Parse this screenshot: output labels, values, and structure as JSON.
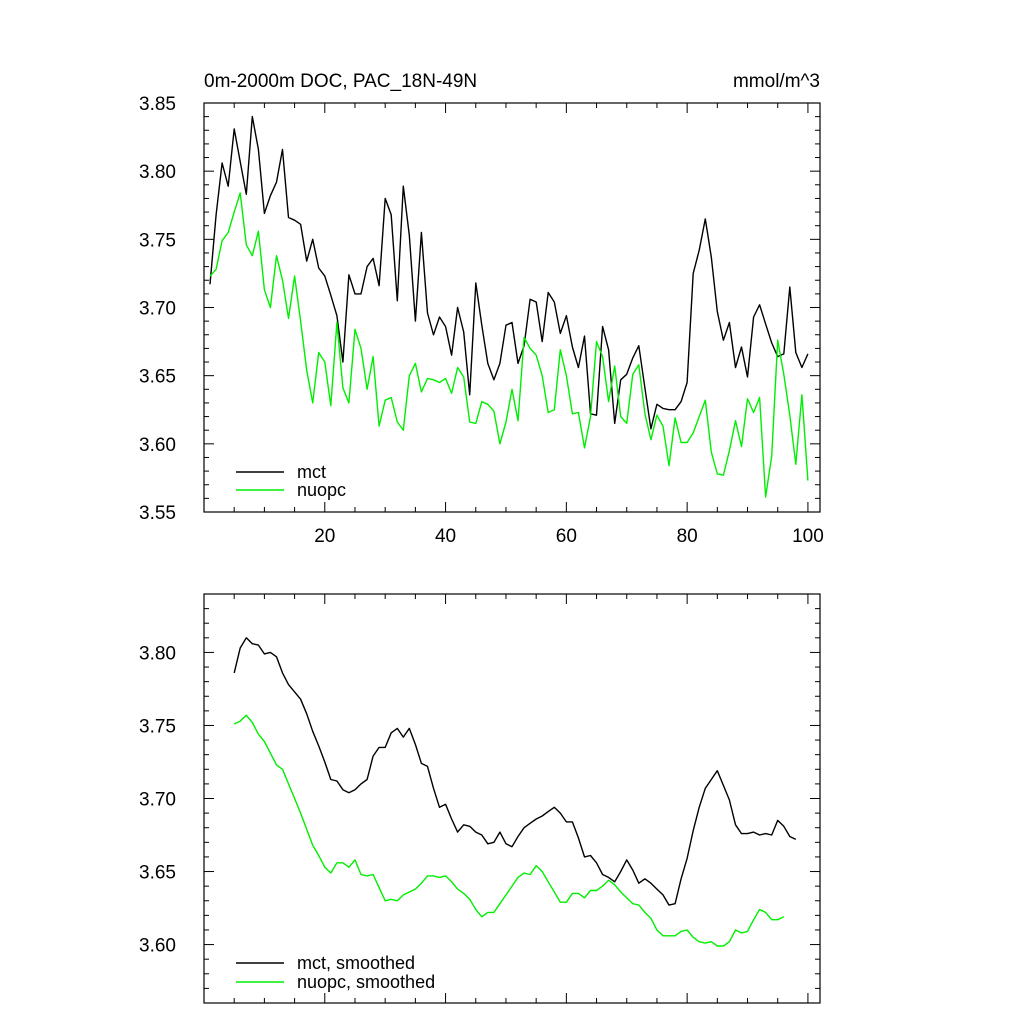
{
  "chart_data": [
    {
      "type": "line",
      "title": "0m-2000m DOC, PAC_18N-49N",
      "units": "mmol/m^3",
      "xlim": [
        0,
        102
      ],
      "ylim": [
        3.55,
        3.85
      ],
      "x_ticks": [
        20,
        40,
        60,
        80,
        100
      ],
      "x_tick_labels": [
        "20",
        "40",
        "60",
        "80",
        "100"
      ],
      "y_ticks": [
        3.55,
        3.6,
        3.65,
        3.7,
        3.75,
        3.8,
        3.85
      ],
      "y_tick_labels": [
        "3.55",
        "3.60",
        "3.65",
        "3.70",
        "3.75",
        "3.80",
        "3.85"
      ],
      "legend_position": "bottom-left",
      "series": [
        {
          "name": "mct",
          "color": "#000000",
          "x_start": 1,
          "values": [
            3.717,
            3.768,
            3.806,
            3.789,
            3.831,
            3.807,
            3.783,
            3.84,
            3.816,
            3.769,
            3.782,
            3.792,
            3.816,
            3.766,
            3.764,
            3.761,
            3.734,
            3.75,
            3.729,
            3.723,
            3.709,
            3.694,
            3.66,
            3.724,
            3.71,
            3.71,
            3.73,
            3.736,
            3.716,
            3.78,
            3.768,
            3.705,
            3.789,
            3.753,
            3.69,
            3.755,
            3.696,
            3.68,
            3.693,
            3.686,
            3.665,
            3.7,
            3.682,
            3.636,
            3.718,
            3.687,
            3.659,
            3.647,
            3.659,
            3.687,
            3.689,
            3.659,
            3.672,
            3.706,
            3.704,
            3.675,
            3.711,
            3.704,
            3.681,
            3.694,
            3.671,
            3.656,
            3.679,
            3.622,
            3.621,
            3.686,
            3.669,
            3.615,
            3.647,
            3.651,
            3.663,
            3.672,
            3.641,
            3.611,
            3.629,
            3.626,
            3.625,
            3.625,
            3.631,
            3.645,
            3.725,
            3.742,
            3.765,
            3.737,
            3.697,
            3.676,
            3.689,
            3.656,
            3.671,
            3.649,
            3.693,
            3.702,
            3.688,
            3.674,
            3.664,
            3.666,
            3.715,
            3.667,
            3.656,
            3.666
          ]
        },
        {
          "name": "nuopc",
          "color": "#00ee00",
          "x_start": 1,
          "values": [
            3.723,
            3.728,
            3.749,
            3.755,
            3.77,
            3.784,
            3.746,
            3.738,
            3.756,
            3.713,
            3.7,
            3.738,
            3.72,
            3.692,
            3.723,
            3.69,
            3.654,
            3.63,
            3.667,
            3.66,
            3.628,
            3.689,
            3.641,
            3.63,
            3.684,
            3.67,
            3.64,
            3.664,
            3.613,
            3.632,
            3.634,
            3.616,
            3.61,
            3.65,
            3.659,
            3.638,
            3.648,
            3.647,
            3.645,
            3.648,
            3.637,
            3.656,
            3.649,
            3.616,
            3.615,
            3.631,
            3.629,
            3.624,
            3.6,
            3.616,
            3.64,
            3.617,
            3.678,
            3.67,
            3.665,
            3.65,
            3.623,
            3.625,
            3.669,
            3.65,
            3.622,
            3.623,
            3.597,
            3.62,
            3.675,
            3.664,
            3.631,
            3.657,
            3.62,
            3.615,
            3.651,
            3.658,
            3.622,
            3.603,
            3.621,
            3.613,
            3.584,
            3.619,
            3.601,
            3.601,
            3.608,
            3.62,
            3.632,
            3.594,
            3.578,
            3.577,
            3.595,
            3.617,
            3.598,
            3.633,
            3.623,
            3.634,
            3.561,
            3.591,
            3.676,
            3.651,
            3.621,
            3.585,
            3.636,
            3.573
          ]
        }
      ]
    },
    {
      "type": "line",
      "title": "",
      "units": "",
      "xlim": [
        0,
        102
      ],
      "ylim": [
        3.56,
        3.84
      ],
      "x_ticks": [
        20,
        40,
        60,
        80,
        100
      ],
      "y_ticks": [
        3.6,
        3.65,
        3.7,
        3.75,
        3.8
      ],
      "y_tick_labels": [
        "3.60",
        "3.65",
        "3.70",
        "3.75",
        "3.80"
      ],
      "legend_position": "bottom-left",
      "series": [
        {
          "name": "mct, smoothed",
          "color": "#000000",
          "x_start": 5,
          "values": [
            3.786,
            3.803,
            3.81,
            3.806,
            3.805,
            3.799,
            3.8,
            3.797,
            3.786,
            3.778,
            3.773,
            3.768,
            3.758,
            3.746,
            3.736,
            3.725,
            3.713,
            3.712,
            3.706,
            3.704,
            3.706,
            3.71,
            3.713,
            3.729,
            3.735,
            3.735,
            3.745,
            3.748,
            3.742,
            3.748,
            3.737,
            3.724,
            3.722,
            3.707,
            3.694,
            3.696,
            3.686,
            3.677,
            3.682,
            3.681,
            3.677,
            3.675,
            3.669,
            3.67,
            3.677,
            3.669,
            3.667,
            3.674,
            3.68,
            3.683,
            3.686,
            3.688,
            3.691,
            3.694,
            3.69,
            3.684,
            3.684,
            3.673,
            3.66,
            3.661,
            3.656,
            3.648,
            3.646,
            3.643,
            3.65,
            3.658,
            3.651,
            3.642,
            3.645,
            3.642,
            3.638,
            3.634,
            3.627,
            3.628,
            3.645,
            3.659,
            3.678,
            3.694,
            3.707,
            3.713,
            3.719,
            3.709,
            3.699,
            3.682,
            3.676,
            3.676,
            3.677,
            3.675,
            3.676,
            3.675,
            3.685,
            3.681,
            3.674,
            3.672
          ]
        },
        {
          "name": "nuopc, smoothed",
          "color": "#00ee00",
          "x_start": 5,
          "values": [
            3.751,
            3.753,
            3.757,
            3.752,
            3.744,
            3.739,
            3.731,
            3.723,
            3.72,
            3.71,
            3.7,
            3.69,
            3.679,
            3.668,
            3.661,
            3.653,
            3.649,
            3.656,
            3.656,
            3.653,
            3.658,
            3.648,
            3.647,
            3.648,
            3.639,
            3.63,
            3.631,
            3.63,
            3.634,
            3.636,
            3.638,
            3.642,
            3.647,
            3.647,
            3.646,
            3.647,
            3.643,
            3.638,
            3.635,
            3.631,
            3.624,
            3.619,
            3.622,
            3.622,
            3.628,
            3.634,
            3.64,
            3.646,
            3.649,
            3.648,
            3.654,
            3.65,
            3.643,
            3.636,
            3.629,
            3.629,
            3.635,
            3.635,
            3.632,
            3.637,
            3.637,
            3.64,
            3.644,
            3.641,
            3.636,
            3.632,
            3.628,
            3.627,
            3.622,
            3.618,
            3.61,
            3.606,
            3.606,
            3.606,
            3.609,
            3.61,
            3.605,
            3.602,
            3.601,
            3.602,
            3.599,
            3.599,
            3.602,
            3.61,
            3.608,
            3.609,
            3.617,
            3.624,
            3.622,
            3.617,
            3.617,
            3.619
          ]
        }
      ]
    }
  ]
}
